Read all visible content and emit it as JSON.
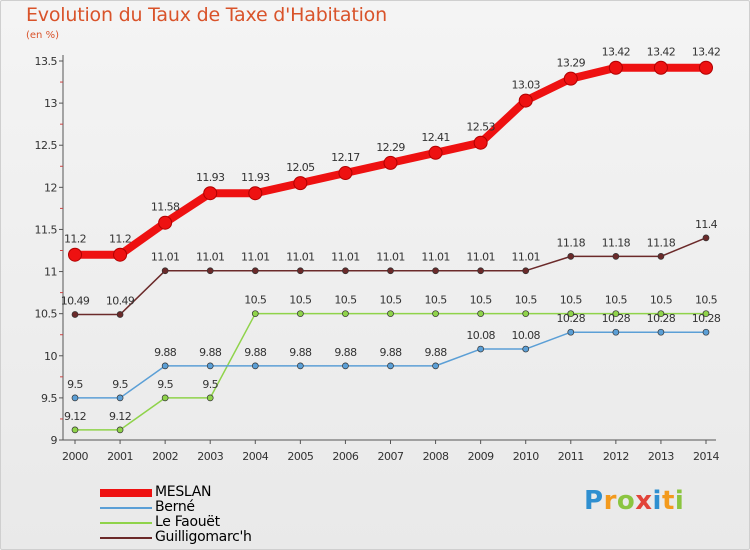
{
  "title": "Evolution du Taux de Taxe d'Habitation",
  "unit": "(en %)",
  "brand": {
    "letters": [
      "P",
      "r",
      "o",
      "x",
      "i",
      "t",
      "i"
    ],
    "colors": [
      "#2f8fd0",
      "#f39a1d",
      "#8bc540",
      "#e2443a",
      "#2f8fd0",
      "#f39a1d",
      "#8bc540"
    ]
  },
  "chart_data": {
    "type": "line",
    "title": "Evolution du Taux de Taxe d'Habitation",
    "ylabel": "(en %)",
    "xlabel": "",
    "ylim": [
      9,
      13.5
    ],
    "yticks": [
      9,
      9.5,
      10,
      10.5,
      11,
      11.5,
      12,
      12.5,
      13,
      13.5
    ],
    "ytick_labels": [
      "9",
      "9.5",
      "10",
      "10.5",
      "11",
      "11.5",
      "12",
      "12.5",
      "13",
      "13.5"
    ],
    "x": [
      "2000",
      "2001",
      "2002",
      "2003",
      "2004",
      "2005",
      "2006",
      "2007",
      "2008",
      "2009",
      "2010",
      "2011",
      "2012",
      "2013",
      "2014"
    ],
    "grid": false,
    "legend_position": "bottom-left",
    "series": [
      {
        "name": "Guilligomarc'h",
        "color": "#6b2a2a",
        "values": [
          10.49,
          10.49,
          11.01,
          11.01,
          11.01,
          11.01,
          11.01,
          11.01,
          11.01,
          11.01,
          11.01,
          11.18,
          11.18,
          11.18,
          11.4
        ],
        "labels": [
          "10.49",
          "10.49",
          "11.01",
          "11.01",
          "11.01",
          "11.01",
          "11.01",
          "11.01",
          "11.01",
          "11.01",
          "11.01",
          "11.18",
          "11.18",
          "11.18",
          "11.4"
        ]
      },
      {
        "name": "Le Faouët",
        "color": "#8fd34a",
        "values": [
          9.12,
          9.12,
          9.5,
          9.5,
          10.5,
          10.5,
          10.5,
          10.5,
          10.5,
          10.5,
          10.5,
          10.5,
          10.5,
          10.5,
          10.5
        ],
        "labels": [
          "9.12",
          "9.12",
          "9.5",
          "9.5",
          "10.5",
          "10.5",
          "10.5",
          "10.5",
          "10.5",
          "10.5",
          "10.5",
          "10.5",
          "10.5",
          "10.5",
          "10.5"
        ]
      },
      {
        "name": "Berné",
        "color": "#5b9fd6",
        "values": [
          9.5,
          9.5,
          9.88,
          9.88,
          9.88,
          9.88,
          9.88,
          9.88,
          9.88,
          10.08,
          10.08,
          10.28,
          10.28,
          10.28,
          10.28
        ],
        "labels": [
          "9.5",
          "9.5",
          "9.88",
          "9.88",
          "9.88",
          "9.88",
          "9.88",
          "9.88",
          "9.88",
          "10.08",
          "10.08",
          "10.28",
          "10.28",
          "10.28",
          "10.28"
        ]
      },
      {
        "name": "MESLAN",
        "color": "#ee1111",
        "values": [
          11.2,
          11.2,
          11.58,
          11.93,
          11.93,
          12.05,
          12.17,
          12.29,
          12.41,
          12.53,
          13.03,
          13.29,
          13.42,
          13.42,
          13.42
        ],
        "labels": [
          "11.2",
          "11.2",
          "11.58",
          "11.93",
          "11.93",
          "12.05",
          "12.17",
          "12.29",
          "12.41",
          "12.53",
          "13.03",
          "13.29",
          "13.42",
          "13.42",
          "13.42"
        ]
      }
    ],
    "legend": [
      {
        "name": "MESLAN",
        "color": "#ee1111"
      },
      {
        "name": "Berné",
        "color": "#5b9fd6"
      },
      {
        "name": "Le Faouët",
        "color": "#8fd34a"
      },
      {
        "name": "Guilligomarc'h",
        "color": "#6b2a2a"
      }
    ]
  }
}
